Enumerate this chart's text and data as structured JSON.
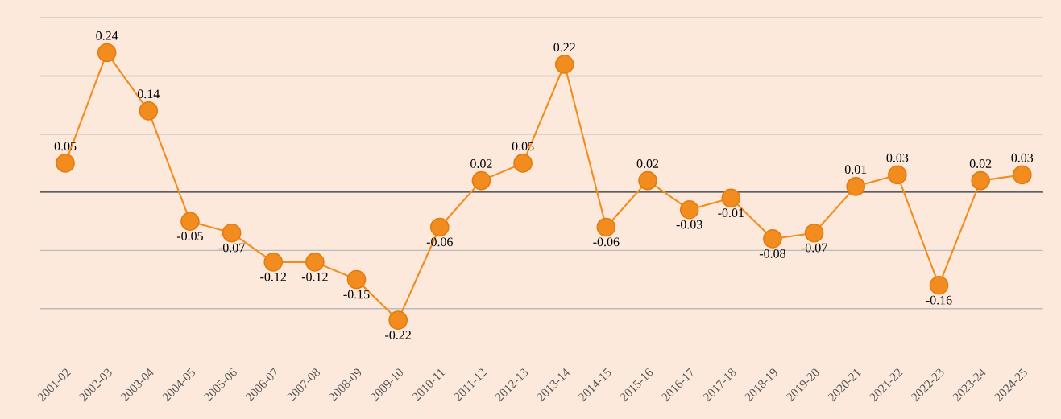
{
  "chart_data": {
    "type": "line",
    "categories": [
      "2001-02",
      "2002-03",
      "2003-04",
      "2004-05",
      "2005-06",
      "2006-07",
      "2007-08",
      "2008-09",
      "2009-10",
      "2010-11",
      "2011-12",
      "2012-13",
      "2013-14",
      "2014-15",
      "2015-16",
      "2016-17",
      "2017-18",
      "2018-19",
      "2019-20",
      "2020-21",
      "2021-22",
      "2022-23",
      "2023-24",
      "2024-25"
    ],
    "series": [
      {
        "color": "#f28c1e",
        "values": [
          0.05,
          0.24,
          0.14,
          -0.05,
          -0.07,
          -0.12,
          -0.12,
          -0.15,
          -0.22,
          -0.06,
          0.02,
          0.05,
          0.22,
          -0.06,
          0.02,
          -0.03,
          -0.01,
          -0.08,
          -0.07,
          0.01,
          0.03,
          -0.16,
          0.02,
          0.03
        ]
      }
    ],
    "ref_lines": [
      {
        "axis": "y",
        "value": 0,
        "color": "#000000"
      }
    ],
    "grid": "y",
    "tick_labels": "x",
    "marker": "circle",
    "line_style": "solid",
    "data_labels": true,
    "legend": false
  }
}
